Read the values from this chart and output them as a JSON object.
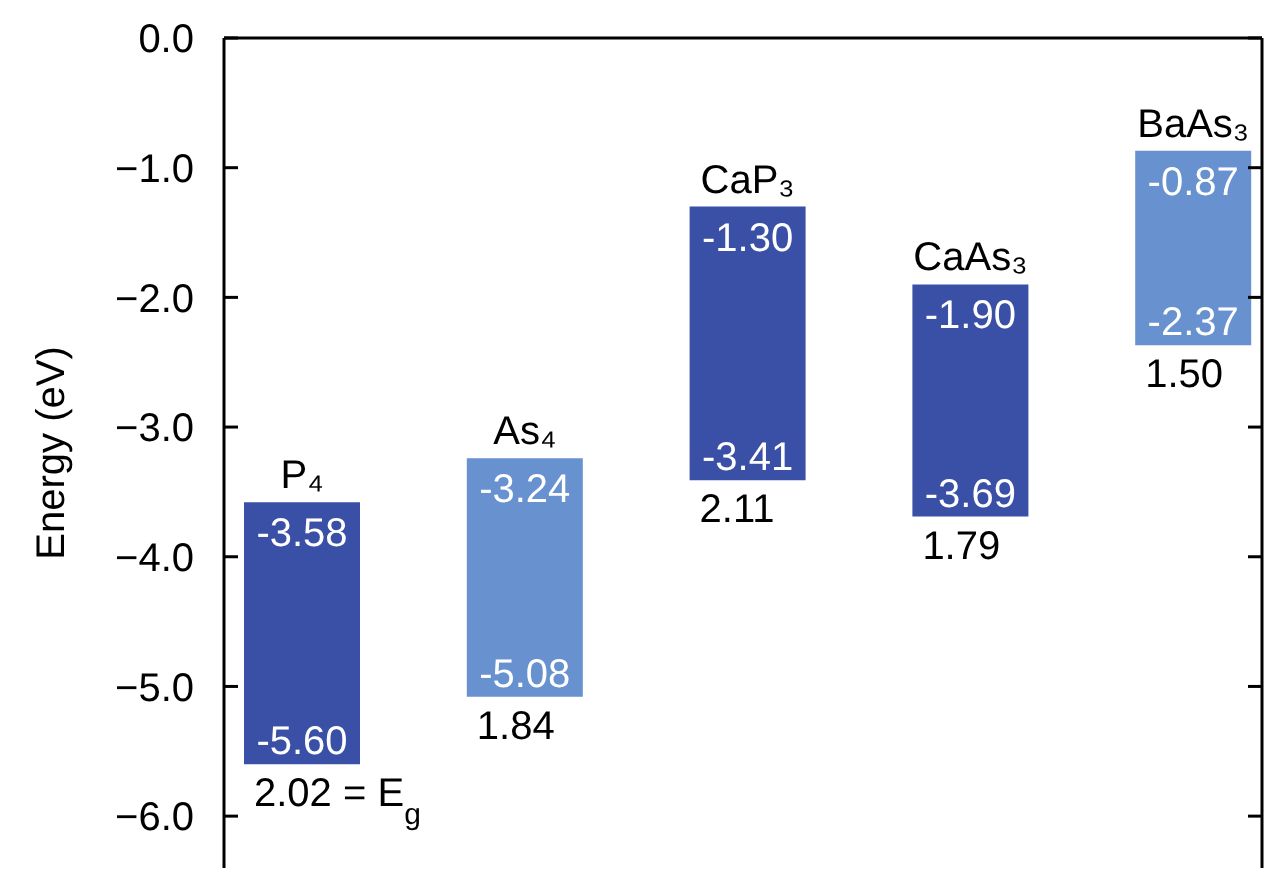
{
  "chart_data": {
    "type": "bar",
    "ylabel": "Energy (eV)",
    "categories": [
      "P₄",
      "As₄",
      "CaP₃",
      "CaAs₃",
      "BaAs₃"
    ],
    "base": [
      -5.6,
      -5.08,
      -3.41,
      -3.69,
      -2.37
    ],
    "values": [
      2.02,
      1.84,
      2.11,
      1.79,
      1.5
    ],
    "colors": [
      "#3a4fa6",
      "#6891cf",
      "#3a4fa6",
      "#3a4fa6",
      "#6891cf"
    ],
    "value_labels": [
      "2.02 = E$_{g}$",
      "1.84",
      "2.11",
      "1.79",
      "1.50"
    ],
    "annotations": [
      {
        "text": "-3.58",
        "x": "P₄",
        "y": -3.58
      },
      {
        "text": "-5.60",
        "x": "P₄",
        "y": -5.6
      },
      {
        "text": "-3.24",
        "x": "As₄",
        "y": -3.24
      },
      {
        "text": "-5.08",
        "x": "As₄",
        "y": -5.08
      },
      {
        "text": "-1.30",
        "x": "CaP₃",
        "y": -1.3
      },
      {
        "text": "-3.41",
        "x": "CaP₃",
        "y": -3.41
      },
      {
        "text": "-1.90",
        "x": "CaAs₃",
        "y": -1.9
      },
      {
        "text": "-3.69",
        "x": "CaAs₃",
        "y": -3.69
      },
      {
        "text": "-0.87",
        "x": "BaAs₃",
        "y": -0.87
      },
      {
        "text": "-2.37",
        "x": "BaAs₃",
        "y": -2.37
      }
    ],
    "ylim": [
      -6.4,
      0
    ],
    "yticks": [
      {
        "value": 0,
        "label": "0.0"
      },
      {
        "value": -1,
        "label": "−1.0"
      },
      {
        "value": -2,
        "label": "−2.0"
      },
      {
        "value": -3,
        "label": "−3.0"
      },
      {
        "value": -4,
        "label": "−4.0"
      },
      {
        "value": -5,
        "label": "−5.0"
      },
      {
        "value": -6,
        "label": "−6.0"
      }
    ],
    "tick_labels": "y"
  }
}
